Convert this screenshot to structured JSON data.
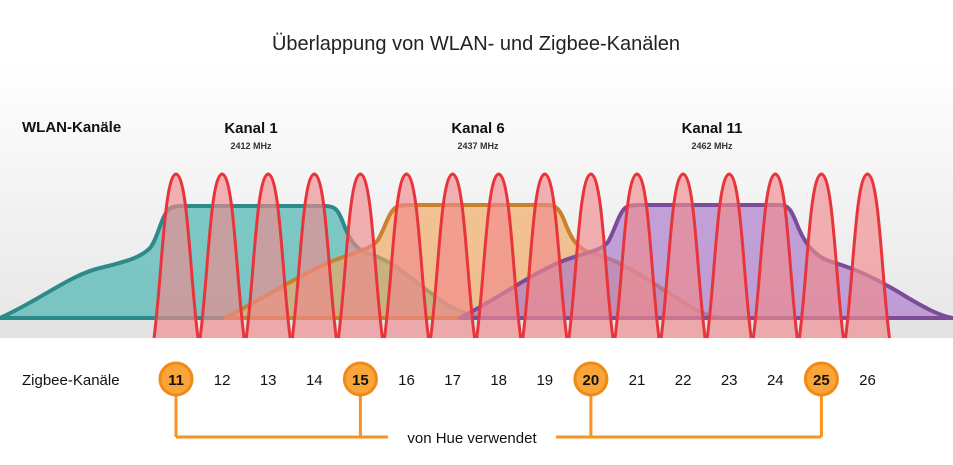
{
  "title": "Überlappung von WLAN- und Zigbee-Kanälen",
  "wlan": {
    "row_label": "WLAN-Kanäle",
    "channels": [
      {
        "name": "Kanal 1",
        "freq": "2412 MHz",
        "color": "#3fb0ad",
        "stroke": "#2c8b88"
      },
      {
        "name": "Kanal 6",
        "freq": "2437 MHz",
        "color": "#f3a85f",
        "stroke": "#c9812c"
      },
      {
        "name": "Kanal 11",
        "freq": "2462 MHz",
        "color": "#a875c9",
        "stroke": "#7b4d98"
      }
    ]
  },
  "zigbee": {
    "row_label": "Zigbee-Kanäle",
    "channels": [
      "11",
      "12",
      "13",
      "14",
      "15",
      "16",
      "17",
      "18",
      "19",
      "20",
      "21",
      "22",
      "23",
      "24",
      "25",
      "26"
    ],
    "highlighted": [
      "11",
      "15",
      "20",
      "25"
    ],
    "peak_color": "#f08a8e",
    "peak_stroke": "#e8353c",
    "highlight_fill": "#f9a53a",
    "highlight_stroke": "#f08a16"
  },
  "hue_label": "von Hue verwendet",
  "colors": {
    "connector": "#f7931e",
    "band_top": "#e9e9e9"
  }
}
